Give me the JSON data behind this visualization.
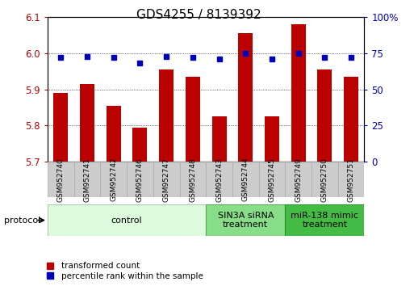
{
  "title": "GDS4255 / 8139392",
  "samples": [
    "GSM952740",
    "GSM952741",
    "GSM952742",
    "GSM952746",
    "GSM952747",
    "GSM952748",
    "GSM952743",
    "GSM952744",
    "GSM952745",
    "GSM952749",
    "GSM952750",
    "GSM952751"
  ],
  "bar_values": [
    5.89,
    5.915,
    5.855,
    5.795,
    5.955,
    5.935,
    5.825,
    6.055,
    5.825,
    6.08,
    5.955,
    5.935
  ],
  "percentile_values": [
    72,
    73,
    72,
    68,
    73,
    72,
    71,
    75,
    71,
    75,
    72,
    72
  ],
  "bar_color": "#bb0000",
  "percentile_color": "#0000bb",
  "ylim_left": [
    5.7,
    6.1
  ],
  "ylim_right": [
    0,
    100
  ],
  "yticks_left": [
    5.7,
    5.8,
    5.9,
    6.0,
    6.1
  ],
  "yticks_right": [
    0,
    25,
    50,
    75,
    100
  ],
  "ytick_labels_right": [
    "0",
    "25",
    "50",
    "75",
    "100%"
  ],
  "groups": [
    {
      "label": "control",
      "start": 0,
      "end": 6,
      "color": "#ddfcdd",
      "edge_color": "#aaccaa"
    },
    {
      "label": "SIN3A siRNA\ntreatment",
      "start": 6,
      "end": 9,
      "color": "#88dd88",
      "edge_color": "#55aa55"
    },
    {
      "label": "miR-138 mimic\ntreatment",
      "start": 9,
      "end": 12,
      "color": "#44bb44",
      "edge_color": "#229922"
    }
  ],
  "protocol_label": "protocol",
  "legend_red_label": "transformed count",
  "legend_blue_label": "percentile rank within the sample",
  "bar_bottom": 5.7,
  "bar_width": 0.55,
  "tick_fontsize": 8.5,
  "sample_fontsize": 6.5,
  "title_fontsize": 11,
  "group_fontsize": 8,
  "sample_box_color": "#cccccc",
  "sample_box_edge": "#aaaaaa"
}
